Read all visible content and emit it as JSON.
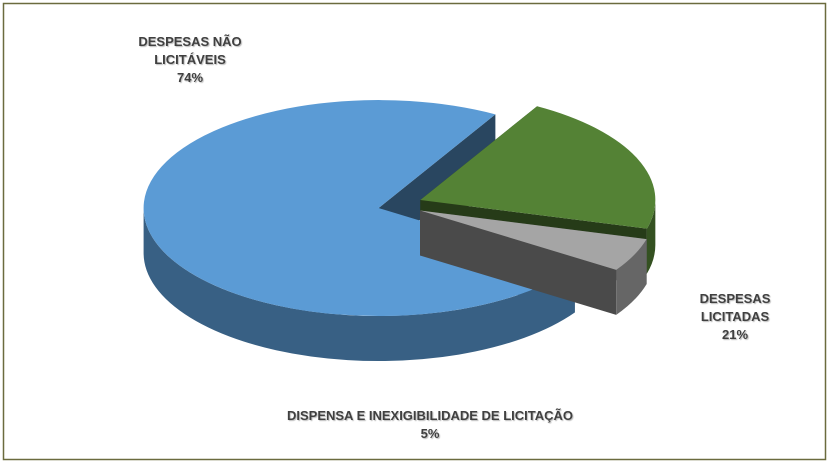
{
  "chart_data": {
    "type": "pie",
    "categories": [
      "DESPESAS NÃO LICITÁVEIS",
      "DESPESAS LICITADAS",
      "DISPENSA E INEXIGIBILIDADE DE LICITAÇÃO"
    ],
    "values": [
      74,
      21,
      5
    ],
    "value_labels": [
      "74%",
      "21%",
      "5%"
    ],
    "colors": [
      "#5b9bd5",
      "#548235",
      "#a5a5a5"
    ],
    "three_d": true
  }
}
